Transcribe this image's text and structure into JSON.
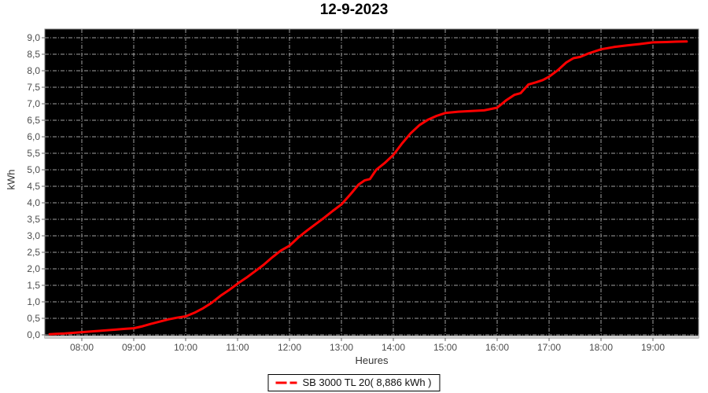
{
  "title": "12-9-2023",
  "axes": {
    "y_label": "kWh",
    "x_label": "Heures",
    "y_tick_values": [
      0,
      0.5,
      1,
      1.5,
      2,
      2.5,
      3,
      3.5,
      4,
      4.5,
      5,
      5.5,
      6,
      6.5,
      7,
      7.5,
      8,
      8.5,
      9
    ],
    "y_tick_labels": [
      "0,0",
      "0,5",
      "1,0",
      "1,5",
      "2,0",
      "2,5",
      "3,0",
      "3,5",
      "4,0",
      "4,5",
      "5,0",
      "5,5",
      "6,0",
      "6,5",
      "7,0",
      "7,5",
      "8,0",
      "8,5",
      "9,0"
    ],
    "x_tick_values": [
      8,
      9,
      10,
      11,
      12,
      13,
      14,
      15,
      16,
      17,
      18,
      19
    ],
    "x_tick_labels": [
      "08:00",
      "09:00",
      "10:00",
      "11:00",
      "12:00",
      "13:00",
      "14:00",
      "15:00",
      "16:00",
      "17:00",
      "18:00",
      "19:00"
    ]
  },
  "legend": {
    "series_label": "SB 3000 TL 20( 8,886 kWh )",
    "marker_color": "#ff0000"
  },
  "colors": {
    "plot_bg": "#000000",
    "plot_border": "#808080",
    "grid": "#a0a0a0",
    "axis_band": "#cccccc",
    "tick_mark": "#666666",
    "tick_text": "#4d4d4d",
    "line": "#ff0000"
  },
  "chart_data": {
    "type": "line",
    "title": "12-9-2023",
    "xlabel": "Heures",
    "ylabel": "kWh",
    "x_unit": "hour_of_day",
    "xlim": [
      7.29,
      19.88
    ],
    "ylim": [
      0,
      9.26
    ],
    "grid": true,
    "legend_position": "bottom",
    "series": [
      {
        "name": "SB 3000 TL 20( 8,886 kWh )",
        "total_kwh": 8.886,
        "x": [
          7.38,
          7.5,
          7.67,
          7.83,
          8.0,
          8.17,
          8.33,
          8.5,
          8.67,
          8.83,
          9.0,
          9.17,
          9.33,
          9.5,
          9.67,
          9.83,
          10.0,
          10.17,
          10.33,
          10.5,
          10.67,
          10.83,
          11.0,
          11.17,
          11.33,
          11.5,
          11.67,
          11.83,
          12.0,
          12.17,
          12.33,
          12.5,
          12.67,
          12.83,
          13.0,
          13.17,
          13.33,
          13.45,
          13.55,
          13.67,
          13.83,
          14.0,
          14.17,
          14.33,
          14.5,
          14.67,
          14.83,
          15.0,
          15.25,
          15.5,
          15.75,
          16.0,
          16.17,
          16.33,
          16.45,
          16.6,
          16.75,
          16.88,
          17.0,
          17.17,
          17.33,
          17.47,
          17.6,
          17.75,
          18.0,
          18.25,
          18.5,
          18.75,
          19.0,
          19.25,
          19.45,
          19.65
        ],
        "y": [
          0.02,
          0.03,
          0.04,
          0.06,
          0.08,
          0.1,
          0.12,
          0.14,
          0.16,
          0.18,
          0.2,
          0.26,
          0.33,
          0.4,
          0.47,
          0.52,
          0.56,
          0.67,
          0.8,
          0.97,
          1.18,
          1.35,
          1.55,
          1.73,
          1.92,
          2.12,
          2.35,
          2.55,
          2.7,
          2.95,
          3.15,
          3.35,
          3.55,
          3.75,
          3.95,
          4.25,
          4.55,
          4.68,
          4.72,
          5.0,
          5.2,
          5.45,
          5.8,
          6.1,
          6.35,
          6.52,
          6.63,
          6.72,
          6.76,
          6.78,
          6.8,
          6.88,
          7.1,
          7.27,
          7.32,
          7.58,
          7.65,
          7.72,
          7.82,
          8.02,
          8.25,
          8.38,
          8.42,
          8.52,
          8.65,
          8.72,
          8.77,
          8.81,
          8.86,
          8.87,
          8.88,
          8.886
        ]
      }
    ]
  }
}
